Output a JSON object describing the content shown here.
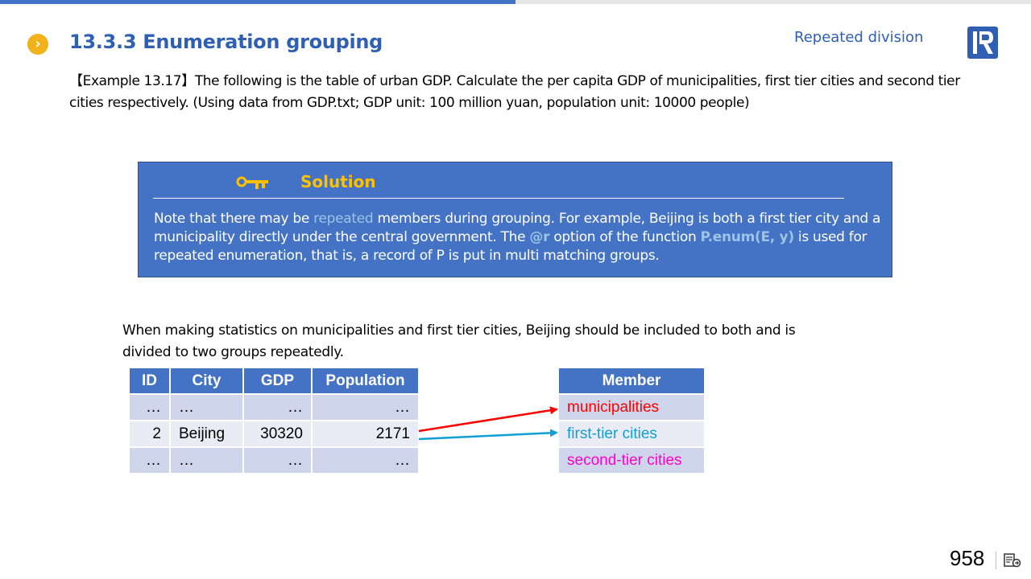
{
  "header": {
    "title": "13.3.3 Enumeration grouping",
    "topic": "Repeated division"
  },
  "intro": "【Example 13.17】The following is the table of urban GDP. Calculate the per capita GDP of municipalities, first tier cities and second tier cities respectively. (Using data from GDP.txt; GDP unit: 100 million yuan, population unit: 10000 people)",
  "solution": {
    "title": "Solution",
    "t1": "Note that there may be ",
    "t2": "repeated",
    "t3": " members during grouping. For example, Beijing is both a first tier city and a municipality directly under the central government. The ",
    "t4": "@r",
    "t5": " option of the function ",
    "t6": "P.enum(E, y)",
    "t7": " is used for repeated enumeration, that is, a record of P is put in multi matching groups."
  },
  "stat_text": "When making statistics on municipalities and first tier cities, Beijing should be included to both and is divided to two groups repeatedly.",
  "gdp_table": {
    "headers": [
      "ID",
      "City",
      "GDP",
      "Population"
    ],
    "rows": [
      [
        "…",
        "…",
        "…",
        "…"
      ],
      [
        "2",
        "Beijing",
        "30320",
        "2171"
      ],
      [
        "…",
        "…",
        "…",
        "…"
      ]
    ]
  },
  "member_table": {
    "header": "Member",
    "rows": [
      {
        "label": "municipalities",
        "color": "#ff0000"
      },
      {
        "label": "first-tier cities",
        "color": "#0f9ed5"
      },
      {
        "label": "second-tier cities",
        "color": "#ff00cc"
      }
    ]
  },
  "arrows": [
    {
      "from": "beijing-row",
      "to": "municipalities",
      "color": "#ff0000"
    },
    {
      "from": "beijing-row",
      "to": "first-tier cities",
      "color": "#0f9ed5"
    }
  ],
  "footer": {
    "page_number": "958"
  },
  "colors": {
    "accent": "#4472c4",
    "title": "#2f5fb3",
    "key_yellow": "#ffc000",
    "icon_orange": "#f2b21b"
  }
}
